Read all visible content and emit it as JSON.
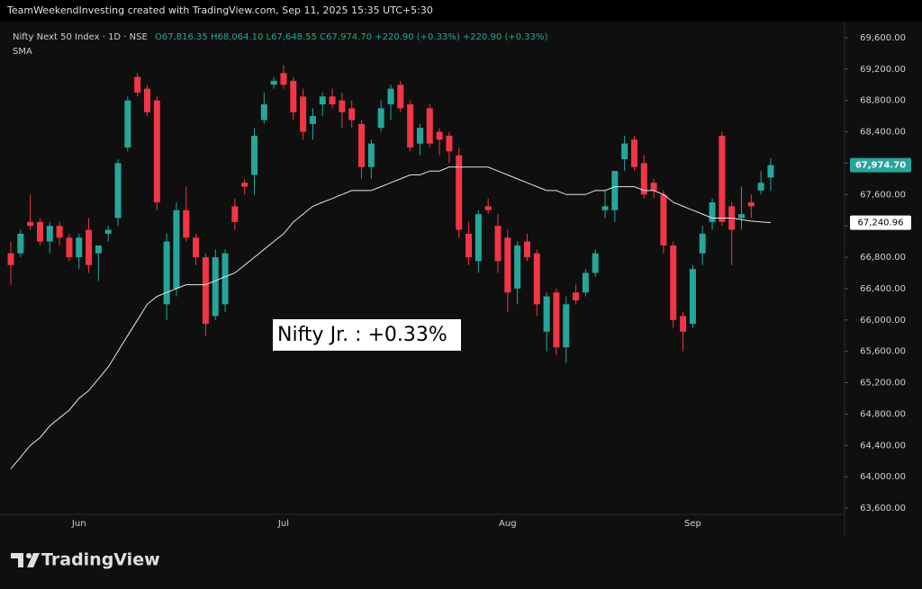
{
  "header": {
    "credit": "TeamWeekendInvesting created with TradingView.com, Sep 11, 2025 15:35 UTC+5:30"
  },
  "chart_data": {
    "type": "candlestick",
    "title": "Nifty Next 50 Index · 1D · NSE",
    "ohlc_legend": "O67,816.35 H68,064.10 L67,648.55 C67,974.70 +220.90 (+0.33%) +220.90 (+0.33%)",
    "categories": [
      null,
      null,
      null,
      null,
      null,
      null,
      null,
      "Jun",
      null,
      null,
      null,
      null,
      null,
      null,
      null,
      null,
      null,
      null,
      null,
      null,
      null,
      null,
      null,
      null,
      null,
      null,
      null,
      null,
      "Jul",
      null,
      null,
      null,
      null,
      null,
      null,
      null,
      null,
      null,
      null,
      null,
      null,
      null,
      null,
      null,
      null,
      null,
      null,
      null,
      null,
      null,
      null,
      "Aug",
      null,
      null,
      null,
      null,
      null,
      null,
      null,
      null,
      null,
      null,
      null,
      null,
      null,
      null,
      null,
      null,
      null,
      null,
      "Sep",
      null,
      null,
      null,
      null,
      null,
      null,
      null,
      null
    ],
    "open": [
      66850,
      66850,
      67250,
      67250,
      67000,
      67200,
      67050,
      66800,
      67150,
      66850,
      67100,
      67300,
      68200,
      69100,
      68950,
      68800,
      66200,
      66400,
      67400,
      67050,
      66800,
      66050,
      66200,
      67450,
      67750,
      67850,
      68550,
      69000,
      69150,
      69050,
      68850,
      68500,
      68750,
      68850,
      68800,
      68700,
      68500,
      67950,
      68450,
      68750,
      69000,
      68750,
      68250,
      68700,
      68400,
      68350,
      68100,
      67100,
      66750,
      67450,
      67200,
      67050,
      66400,
      67000,
      66850,
      65850,
      66350,
      65650,
      66350,
      66350,
      66600,
      67400,
      67400,
      68050,
      68300,
      68000,
      67750,
      67600,
      66950,
      66050,
      65950,
      66850,
      67250,
      68350,
      67450,
      67300,
      67500,
      67650,
      67816.35
    ],
    "high": [
      67000,
      67150,
      67600,
      67300,
      67250,
      67250,
      67100,
      67100,
      67300,
      66950,
      67200,
      68050,
      68850,
      69150,
      69000,
      68850,
      67100,
      67500,
      67700,
      67100,
      66850,
      66900,
      66900,
      67550,
      67800,
      68450,
      68900,
      69100,
      69250,
      69100,
      68950,
      68700,
      68900,
      68950,
      68900,
      68800,
      68550,
      68300,
      68800,
      69000,
      69050,
      68800,
      68500,
      68750,
      68450,
      68400,
      68200,
      67250,
      67400,
      67550,
      67350,
      67150,
      67000,
      67100,
      66900,
      66350,
      66400,
      66300,
      66450,
      66650,
      66900,
      67650,
      67900,
      68350,
      68350,
      68100,
      67800,
      67650,
      67000,
      66100,
      66700,
      67200,
      67550,
      68400,
      67500,
      67700,
      67600,
      67900,
      68064.1
    ],
    "low": [
      66450,
      66800,
      67150,
      66950,
      66850,
      66950,
      66750,
      66650,
      66600,
      66500,
      67000,
      67200,
      68150,
      68850,
      68600,
      67400,
      66000,
      66300,
      67000,
      66700,
      65800,
      66000,
      66100,
      67150,
      67600,
      67600,
      68500,
      68950,
      68950,
      68550,
      68300,
      68300,
      68600,
      68700,
      68450,
      68450,
      67800,
      67800,
      68400,
      68550,
      68650,
      68150,
      68100,
      68200,
      68100,
      68000,
      67050,
      66700,
      66600,
      67350,
      66600,
      66100,
      66200,
      66750,
      66050,
      65600,
      65550,
      65450,
      66200,
      66300,
      66550,
      67300,
      67250,
      67900,
      67900,
      67550,
      67550,
      66850,
      65900,
      65600,
      65900,
      66700,
      67150,
      67200,
      66700,
      67150,
      67300,
      67600,
      67648.55
    ],
    "close": [
      66700,
      67100,
      67200,
      67000,
      67200,
      67050,
      66800,
      67050,
      66700,
      66950,
      67150,
      68000,
      68800,
      68900,
      68650,
      67500,
      67000,
      67400,
      67050,
      66800,
      65950,
      66800,
      66850,
      67250,
      67700,
      68350,
      68750,
      69050,
      69000,
      68650,
      68400,
      68600,
      68850,
      68750,
      68650,
      68550,
      67950,
      68250,
      68700,
      68950,
      68700,
      68200,
      68450,
      68250,
      68300,
      68150,
      67150,
      66800,
      67350,
      67400,
      66750,
      66350,
      66950,
      66800,
      66200,
      66300,
      65650,
      66200,
      66250,
      66600,
      66850,
      67450,
      67900,
      68250,
      67950,
      67600,
      67650,
      66950,
      66000,
      65850,
      66650,
      67100,
      67500,
      67250,
      67150,
      67350,
      67450,
      67750,
      67974.7
    ],
    "up_color": "#26a69a",
    "down_color": "#f23645",
    "series": [
      {
        "name": "SMA",
        "color": "#e6e6e6",
        "values": [
          64100,
          64250,
          64400,
          64500,
          64650,
          64750,
          64850,
          65000,
          65100,
          65250,
          65400,
          65600,
          65800,
          66000,
          66200,
          66300,
          66350,
          66400,
          66450,
          66450,
          66450,
          66500,
          66550,
          66600,
          66700,
          66800,
          66900,
          67000,
          67100,
          67250,
          67350,
          67450,
          67500,
          67550,
          67600,
          67650,
          67650,
          67650,
          67700,
          67750,
          67800,
          67850,
          67850,
          67900,
          67900,
          67950,
          67950,
          67950,
          67950,
          67950,
          67900,
          67850,
          67800,
          67750,
          67700,
          67650,
          67650,
          67600,
          67600,
          67600,
          67650,
          67650,
          67700,
          67700,
          67700,
          67650,
          67650,
          67600,
          67500,
          67450,
          67400,
          67350,
          67300,
          67300,
          67300,
          67280,
          67260,
          67250,
          67240.96
        ]
      }
    ],
    "ylim": [
      63520,
      69760
    ],
    "yticks": [
      {
        "value": 63600,
        "label": "63,600.00"
      },
      {
        "value": 64000,
        "label": "64,000.00"
      },
      {
        "value": 64400,
        "label": "64,400.00"
      },
      {
        "value": 64800,
        "label": "64,800.00"
      },
      {
        "value": 65200,
        "label": "65,200.00"
      },
      {
        "value": 65600,
        "label": "65,600.00"
      },
      {
        "value": 66000,
        "label": "66,000.00"
      },
      {
        "value": 66400,
        "label": "66,400.00"
      },
      {
        "value": 66800,
        "label": "66,800.00"
      },
      {
        "value": 67200,
        "label": "67,200.00"
      },
      {
        "value": 67600,
        "label": "67,600.00"
      },
      {
        "value": 68000,
        "label": "68,000.00"
      },
      {
        "value": 68400,
        "label": "68,400.00"
      },
      {
        "value": 68800,
        "label": "68,800.00"
      },
      {
        "value": 69200,
        "label": "69,200.00"
      },
      {
        "value": 69600,
        "label": "69,600.00"
      }
    ],
    "annotation": "Nifty Jr. : +0.33%",
    "price_label": "67,974.70",
    "sma_label": "67,240.96"
  },
  "footer": {
    "logo": "TradingView"
  }
}
